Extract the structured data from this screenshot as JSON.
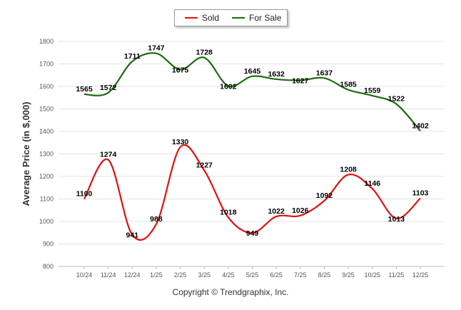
{
  "chart_data": {
    "type": "line",
    "title": "",
    "xlabel": "",
    "ylabel": "Average Price (in $,000)",
    "ylim": [
      800,
      1800
    ],
    "yticks": [
      800,
      900,
      1000,
      1100,
      1200,
      1300,
      1400,
      1500,
      1600,
      1700,
      1800
    ],
    "grid": true,
    "legend": "top-center",
    "categories": [
      "10/24",
      "11/24",
      "12/24",
      "1/25",
      "2/25",
      "3/25",
      "4/25",
      "5/25",
      "6/25",
      "7/25",
      "8/25",
      "9/25",
      "10/25",
      "11/25",
      "12/25"
    ],
    "series": [
      {
        "name": "Sold",
        "color": "#e31010",
        "values": [
          1100,
          1274,
          941,
          988,
          1330,
          1227,
          1018,
          949,
          1022,
          1026,
          1092,
          1208,
          1146,
          1013,
          1103
        ]
      },
      {
        "name": "For Sale",
        "color": "#1e6b10",
        "values": [
          1565,
          1572,
          1711,
          1747,
          1675,
          1728,
          1602,
          1645,
          1632,
          1627,
          1637,
          1585,
          1559,
          1522,
          1402
        ]
      }
    ]
  },
  "footer": {
    "copyright": "Copyright © Trendgraphix, Inc."
  }
}
